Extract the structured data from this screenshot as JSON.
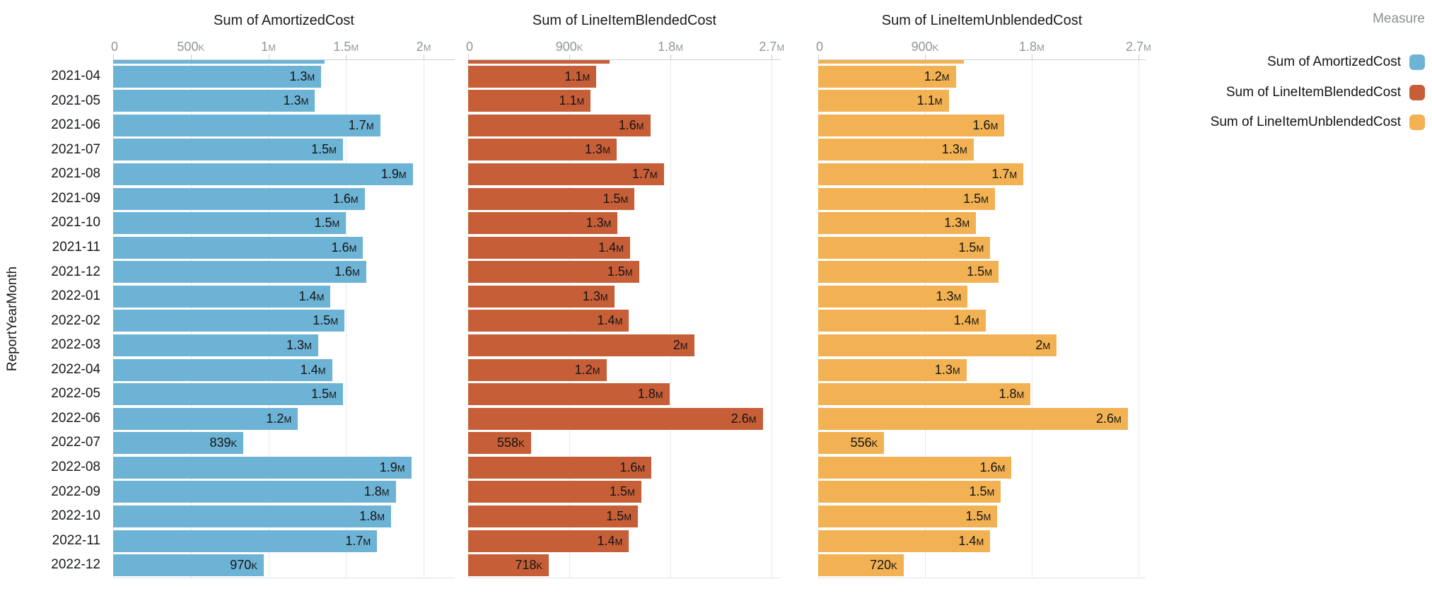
{
  "y_axis_title": "ReportYearMonth",
  "legend": {
    "title": "Measure",
    "items": [
      {
        "label": "Sum of AmortizedCost",
        "color": "#6db3d5"
      },
      {
        "label": "Sum of LineItemBlendedCost",
        "color": "#c65e38"
      },
      {
        "label": "Sum of LineItemUnblendedCost",
        "color": "#f2b153"
      }
    ]
  },
  "chart_data": {
    "type": "bar",
    "orientation": "horizontal",
    "grid": true,
    "legend_position": "right",
    "ylabel": "ReportYearMonth",
    "categories": [
      "2021-04",
      "2021-05",
      "2021-06",
      "2021-07",
      "2021-08",
      "2021-09",
      "2021-10",
      "2021-11",
      "2021-12",
      "2022-01",
      "2022-02",
      "2022-03",
      "2022-04",
      "2022-05",
      "2022-06",
      "2022-07",
      "2022-08",
      "2022-09",
      "2022-10",
      "2022-11",
      "2022-12"
    ],
    "series": [
      {
        "name": "Sum of AmortizedCost",
        "color": "#6db3d5",
        "axis_max": 2200000,
        "ticks": [
          {
            "value": 0,
            "label": "0"
          },
          {
            "value": 500000,
            "label": "500K"
          },
          {
            "value": 1000000,
            "label": "1M"
          },
          {
            "value": 1500000,
            "label": "1.5M"
          },
          {
            "value": 2000000,
            "label": "2M"
          }
        ],
        "clipped_top_value": 1360000,
        "values": [
          1340000,
          1300000,
          1720000,
          1480000,
          1930000,
          1620000,
          1500000,
          1610000,
          1630000,
          1400000,
          1490000,
          1320000,
          1410000,
          1480000,
          1190000,
          839000,
          1920000,
          1820000,
          1790000,
          1700000,
          970000
        ],
        "labels": [
          "1.3M",
          "1.3M",
          "1.7M",
          "1.5M",
          "1.9M",
          "1.6M",
          "1.5M",
          "1.6M",
          "1.6M",
          "1.4M",
          "1.5M",
          "1.3M",
          "1.4M",
          "1.5M",
          "1.2M",
          "839K",
          "1.9M",
          "1.8M",
          "1.8M",
          "1.7M",
          "970K"
        ]
      },
      {
        "name": "Sum of LineItemBlendedCost",
        "color": "#c65e38",
        "axis_max": 2780000,
        "ticks": [
          {
            "value": 0,
            "label": "0"
          },
          {
            "value": 900000,
            "label": "900K"
          },
          {
            "value": 1800000,
            "label": "1.8M"
          },
          {
            "value": 2700000,
            "label": "2.7M"
          }
        ],
        "clipped_top_value": 1260000,
        "values": [
          1140000,
          1090000,
          1620000,
          1320000,
          1740000,
          1480000,
          1330000,
          1440000,
          1520000,
          1300000,
          1430000,
          2010000,
          1230000,
          1790000,
          2620000,
          558000,
          1630000,
          1540000,
          1510000,
          1430000,
          718000
        ],
        "labels": [
          "1.1M",
          "1.1M",
          "1.6M",
          "1.3M",
          "1.7M",
          "1.5M",
          "1.3M",
          "1.4M",
          "1.5M",
          "1.3M",
          "1.4M",
          "2M",
          "1.2M",
          "1.8M",
          "2.6M",
          "558K",
          "1.6M",
          "1.5M",
          "1.5M",
          "1.4M",
          "718K"
        ]
      },
      {
        "name": "Sum of LineItemUnblendedCost",
        "color": "#f2b153",
        "axis_max": 2760000,
        "ticks": [
          {
            "value": 0,
            "label": "0"
          },
          {
            "value": 900000,
            "label": "900K"
          },
          {
            "value": 1800000,
            "label": "1.8M"
          },
          {
            "value": 2700000,
            "label": "2.7M"
          }
        ],
        "clipped_top_value": 1230000,
        "values": [
          1160000,
          1100000,
          1570000,
          1310000,
          1730000,
          1490000,
          1330000,
          1450000,
          1520000,
          1260000,
          1410000,
          2010000,
          1250000,
          1790000,
          2610000,
          556000,
          1630000,
          1540000,
          1510000,
          1450000,
          720000
        ],
        "labels": [
          "1.2M",
          "1.1M",
          "1.6M",
          "1.3M",
          "1.7M",
          "1.5M",
          "1.3M",
          "1.5M",
          "1.5M",
          "1.3M",
          "1.4M",
          "2M",
          "1.3M",
          "1.8M",
          "2.6M",
          "556K",
          "1.6M",
          "1.5M",
          "1.5M",
          "1.4M",
          "720K"
        ]
      }
    ]
  }
}
